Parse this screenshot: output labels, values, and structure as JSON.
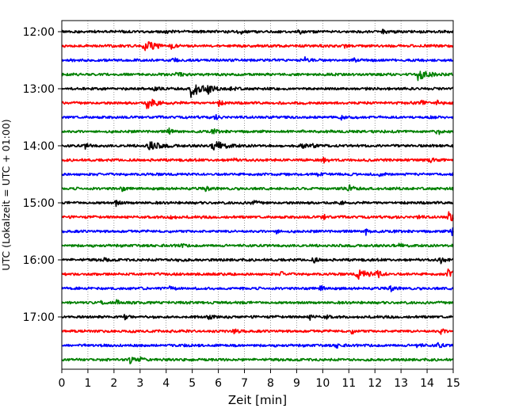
{
  "chart_data": {
    "type": "line",
    "title": "",
    "xlabel": "Zeit  [min]",
    "ylabel": "UTC (Lokalzeit = UTC + 01:00)",
    "xlim": [
      0,
      15
    ],
    "x_ticks": [
      0,
      1,
      2,
      3,
      4,
      5,
      6,
      7,
      8,
      9,
      10,
      11,
      12,
      13,
      14,
      15
    ],
    "x_grid": true,
    "y_ticks": [
      "12:00",
      "13:00",
      "14:00",
      "15:00",
      "16:00",
      "17:00"
    ],
    "rows_per_hour": 4,
    "row_colors": [
      "#000000",
      "#ff0000",
      "#0000ff",
      "#008000"
    ],
    "rows": [
      {
        "start": "12:00",
        "color": "#000000",
        "events": [
          {
            "t": 6.8,
            "a": 1.5
          },
          {
            "t": 4.0,
            "a": 1.2
          },
          {
            "t": 9.1,
            "a": 1.1
          },
          {
            "t": 12.3,
            "a": 1.0
          }
        ]
      },
      {
        "start": "12:15",
        "color": "#ff0000",
        "events": [
          {
            "t": 3.15,
            "a": 3.2
          },
          {
            "t": 4.2,
            "a": 1.3
          },
          {
            "t": 10.8,
            "a": 1.0
          }
        ]
      },
      {
        "start": "12:30",
        "color": "#0000ff",
        "events": [
          {
            "t": 9.3,
            "a": 1.7
          },
          {
            "t": 4.3,
            "a": 1.2
          },
          {
            "t": 11.2,
            "a": 1.0
          }
        ]
      },
      {
        "start": "12:45",
        "color": "#008000",
        "events": [
          {
            "t": 4.4,
            "a": 2.0
          },
          {
            "t": 13.65,
            "a": 2.8
          }
        ]
      },
      {
        "start": "13:00",
        "color": "#000000",
        "events": [
          {
            "t": 4.95,
            "a": 4.5
          },
          {
            "t": 5.6,
            "a": 2.2
          },
          {
            "t": 6.5,
            "a": 1.5
          },
          {
            "t": 3.5,
            "a": 1.2
          }
        ]
      },
      {
        "start": "13:15",
        "color": "#ff0000",
        "events": [
          {
            "t": 3.25,
            "a": 3.0
          },
          {
            "t": 6.0,
            "a": 1.6
          },
          {
            "t": 13.8,
            "a": 1.4
          },
          {
            "t": 14.4,
            "a": 1.1
          }
        ]
      },
      {
        "start": "13:30",
        "color": "#0000ff",
        "events": [
          {
            "t": 5.9,
            "a": 1.2
          },
          {
            "t": 10.7,
            "a": 1.2
          },
          {
            "t": 14.1,
            "a": 1.0
          }
        ]
      },
      {
        "start": "13:45",
        "color": "#008000",
        "events": [
          {
            "t": 4.1,
            "a": 1.6
          },
          {
            "t": 5.8,
            "a": 1.3
          },
          {
            "t": 14.4,
            "a": 2.5
          }
        ]
      },
      {
        "start": "14:00",
        "color": "#000000",
        "events": [
          {
            "t": 3.3,
            "a": 2.8
          },
          {
            "t": 5.8,
            "a": 3.0
          },
          {
            "t": 0.9,
            "a": 1.6
          },
          {
            "t": 9.2,
            "a": 1.3
          },
          {
            "t": 9.6,
            "a": 1.2
          }
        ]
      },
      {
        "start": "14:15",
        "color": "#ff0000",
        "events": [
          {
            "t": 10.0,
            "a": 1.8
          },
          {
            "t": 14.1,
            "a": 1.2
          },
          {
            "t": 6.5,
            "a": 1.1
          }
        ]
      },
      {
        "start": "14:30",
        "color": "#0000ff",
        "events": [
          {
            "t": 9.8,
            "a": 1.3
          },
          {
            "t": 12.1,
            "a": 1.0
          }
        ]
      },
      {
        "start": "14:45",
        "color": "#008000",
        "events": [
          {
            "t": 11.0,
            "a": 2.2
          },
          {
            "t": 2.3,
            "a": 1.2
          },
          {
            "t": 5.5,
            "a": 1.0
          }
        ]
      },
      {
        "start": "15:00",
        "color": "#000000",
        "events": [
          {
            "t": 2.05,
            "a": 1.8
          },
          {
            "t": 7.3,
            "a": 1.6
          },
          {
            "t": 10.7,
            "a": 1.2
          }
        ]
      },
      {
        "start": "15:15",
        "color": "#ff0000",
        "events": [
          {
            "t": 4.1,
            "a": 1.8
          },
          {
            "t": 10.0,
            "a": 1.6
          },
          {
            "t": 14.8,
            "a": 2.6
          },
          {
            "t": 13.6,
            "a": 1.2
          }
        ]
      },
      {
        "start": "15:30",
        "color": "#0000ff",
        "events": [
          {
            "t": 11.65,
            "a": 2.0
          },
          {
            "t": 14.95,
            "a": 2.4
          },
          {
            "t": 8.2,
            "a": 1.2
          }
        ]
      },
      {
        "start": "15:45",
        "color": "#008000",
        "events": [
          {
            "t": 4.5,
            "a": 1.2
          },
          {
            "t": 12.9,
            "a": 1.0
          }
        ]
      },
      {
        "start": "16:00",
        "color": "#000000",
        "events": [
          {
            "t": 9.65,
            "a": 1.7
          },
          {
            "t": 1.6,
            "a": 1.2
          },
          {
            "t": 14.5,
            "a": 2.0
          },
          {
            "t": 4.4,
            "a": 1.0
          }
        ]
      },
      {
        "start": "16:15",
        "color": "#ff0000",
        "events": [
          {
            "t": 11.3,
            "a": 3.0
          },
          {
            "t": 12.1,
            "a": 2.4
          },
          {
            "t": 14.8,
            "a": 2.6
          },
          {
            "t": 8.4,
            "a": 1.3
          }
        ]
      },
      {
        "start": "16:30",
        "color": "#0000ff",
        "events": [
          {
            "t": 9.9,
            "a": 1.6
          },
          {
            "t": 12.6,
            "a": 1.3
          },
          {
            "t": 4.1,
            "a": 1.0
          }
        ]
      },
      {
        "start": "16:45",
        "color": "#008000",
        "events": [
          {
            "t": 2.1,
            "a": 1.4
          },
          {
            "t": 1.5,
            "a": 0.8
          }
        ]
      },
      {
        "start": "17:00",
        "color": "#000000",
        "events": [
          {
            "t": 2.4,
            "a": 1.3
          },
          {
            "t": 5.6,
            "a": 1.5
          },
          {
            "t": 9.5,
            "a": 1.4
          },
          {
            "t": 10.1,
            "a": 1.1
          }
        ]
      },
      {
        "start": "17:15",
        "color": "#ff0000",
        "events": [
          {
            "t": 6.6,
            "a": 1.5
          },
          {
            "t": 11.1,
            "a": 1.3
          },
          {
            "t": 14.5,
            "a": 1.8
          }
        ]
      },
      {
        "start": "17:30",
        "color": "#0000ff",
        "events": [
          {
            "t": 10.5,
            "a": 1.6
          },
          {
            "t": 13.6,
            "a": 1.4
          },
          {
            "t": 14.4,
            "a": 2.0
          }
        ]
      },
      {
        "start": "17:45",
        "color": "#008000",
        "events": [
          {
            "t": 2.6,
            "a": 2.0
          },
          {
            "t": 3.0,
            "a": 1.0
          }
        ]
      }
    ]
  }
}
